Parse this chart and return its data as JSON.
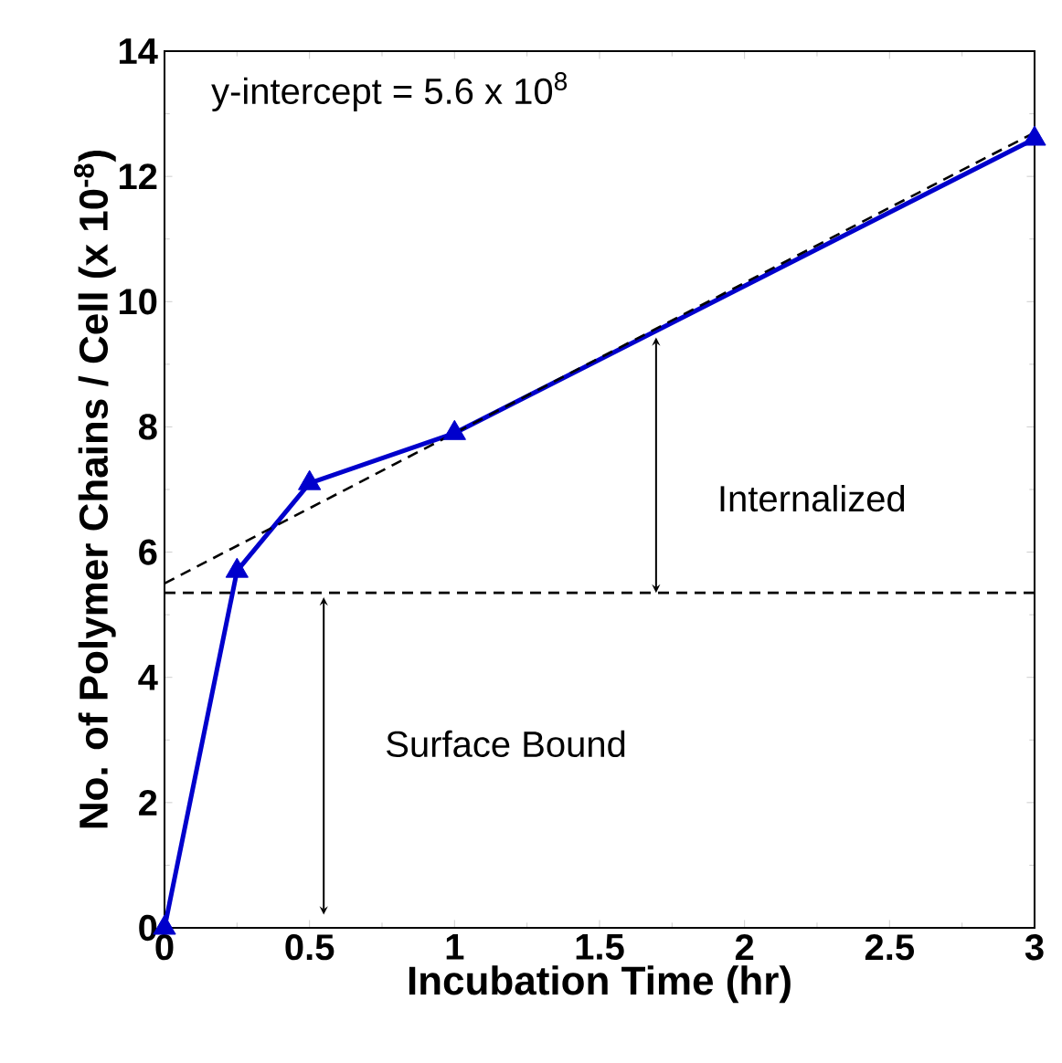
{
  "chart_data": {
    "type": "line",
    "xlabel": "Incubation Time (hr)",
    "ylabel": "No. of Polymer Chains / Cell (x 10$^{-8}$)",
    "xlim": [
      0,
      3
    ],
    "ylim": [
      0,
      14
    ],
    "xticks": [
      0,
      0.5,
      1,
      1.5,
      2,
      2.5,
      3
    ],
    "yticks": [
      0,
      2,
      4,
      6,
      8,
      10,
      12,
      14
    ],
    "series": [
      {
        "color": "#0000cc",
        "marker": "triangle",
        "line_style": "solid",
        "x": [
          0,
          0.25,
          0.5,
          1,
          3
        ],
        "values": [
          0,
          5.7,
          7.1,
          7.9,
          12.6
        ]
      },
      {
        "color": "#000000",
        "marker": "none",
        "line_style": "dashed",
        "x": [
          0,
          3
        ],
        "values": [
          5.5,
          12.7
        ]
      }
    ],
    "ref_lines": [
      {
        "axis": "y",
        "value": 5.35,
        "color": "#000000",
        "line_style": "dashed"
      }
    ],
    "annotations": [
      "y-intercept = 5.6 x 10$^{8}$",
      "Internalized",
      "Surface Bound"
    ]
  }
}
